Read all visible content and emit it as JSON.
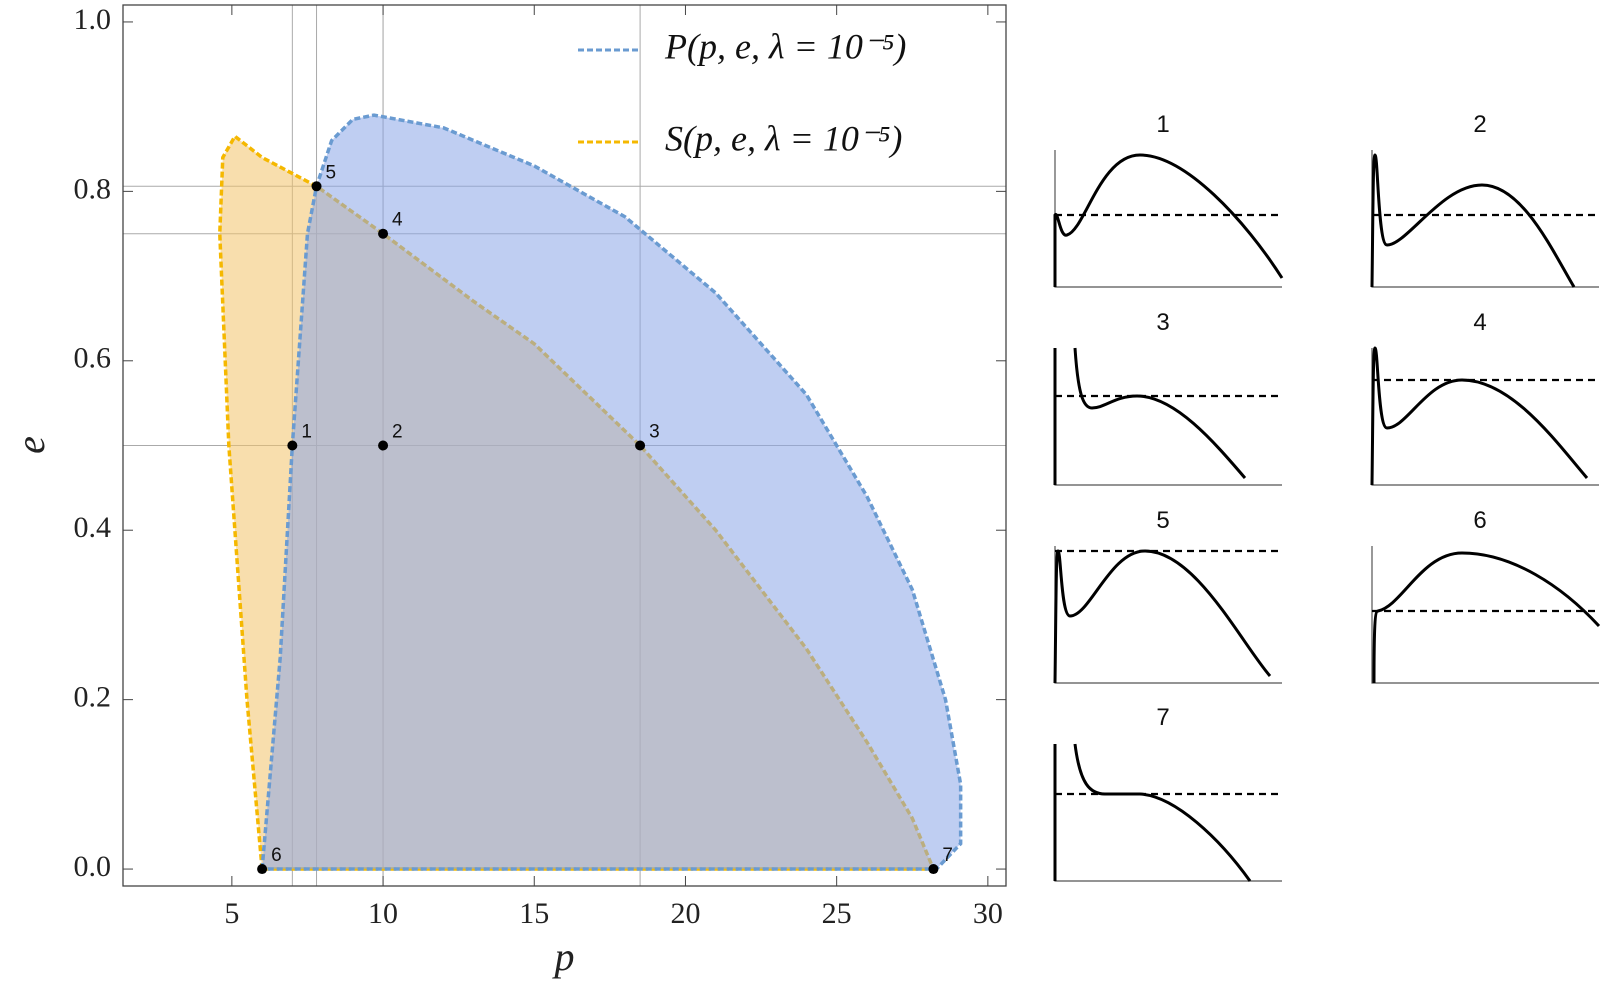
{
  "chart_data": {
    "type": "area",
    "xlabel": "p",
    "ylabel": "e",
    "xlim": [
      1.4,
      30.6
    ],
    "ylim": [
      -0.02,
      1.02
    ],
    "xticks": [
      5,
      10,
      15,
      20,
      25,
      30
    ],
    "yticks": [
      {
        "value": 0,
        "label": "0.0"
      },
      0.2,
      0.4,
      0.6,
      0.8,
      {
        "value": 1,
        "label": "1.0"
      }
    ],
    "series": [
      {
        "name": "S(p, e, λ = 10⁻⁵)",
        "color": "#f5b800",
        "fill": "#f2c26a",
        "x": [
          6,
          5.5,
          4.9,
          4.6,
          4.7,
          5.1,
          6,
          7.8,
          10,
          13,
          15,
          18.5,
          21,
          24,
          26,
          27.5,
          28.2,
          6
        ],
        "values": [
          0,
          0.2,
          0.5,
          0.75,
          0.84,
          0.865,
          0.84,
          0.806,
          0.75,
          0.67,
          0.62,
          0.5,
          0.4,
          0.26,
          0.15,
          0.06,
          0,
          0
        ]
      },
      {
        "name": "P(p, e, λ = 10⁻⁵)",
        "color": "#6a9bd1",
        "fill": "#8aa6e8",
        "x": [
          6,
          6.6,
          7,
          7.5,
          7.8,
          8.3,
          9,
          9.7,
          12,
          15,
          18,
          21,
          24,
          26,
          27.5,
          28.6,
          29.1,
          29.1,
          28.3,
          6
        ],
        "values": [
          0,
          0.25,
          0.5,
          0.75,
          0.806,
          0.86,
          0.885,
          0.89,
          0.875,
          0.83,
          0.77,
          0.68,
          0.56,
          0.44,
          0.33,
          0.2,
          0.1,
          0.03,
          0,
          0
        ]
      }
    ],
    "points": {
      "x": [
        7,
        10,
        18.5,
        10,
        7.8,
        6,
        28.2
      ],
      "values": [
        0.5,
        0.5,
        0.5,
        0.75,
        0.806,
        0,
        0
      ],
      "labels": [
        "1",
        "2",
        "3",
        "4",
        "5",
        "6",
        "7"
      ]
    }
  }
}
